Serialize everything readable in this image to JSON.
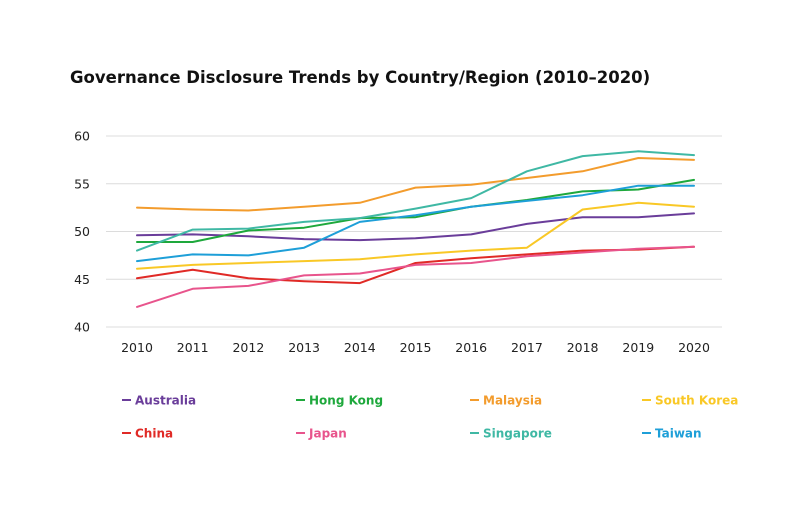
{
  "chart_data": {
    "type": "line",
    "title": "Governance Disclosure Trends by Country/Region (2010–2020)",
    "xlabel": "",
    "ylabel": "",
    "x": [
      "2010",
      "2011",
      "2012",
      "2013",
      "2014",
      "2015",
      "2016",
      "2017",
      "2018",
      "2019",
      "2020"
    ],
    "ylim": [
      40,
      60
    ],
    "yticks": [
      40,
      45,
      50,
      55,
      60
    ],
    "grid": true,
    "legend_position": "bottom",
    "series": [
      {
        "name": "Australia",
        "color": "#6a3d9a",
        "values": [
          49.6,
          49.7,
          49.5,
          49.2,
          49.1,
          49.3,
          49.7,
          50.8,
          51.5,
          51.5,
          51.9
        ]
      },
      {
        "name": "Hong Kong",
        "color": "#1ea83c",
        "values": [
          48.9,
          48.9,
          50.1,
          50.4,
          51.4,
          51.5,
          52.6,
          53.3,
          54.2,
          54.4,
          55.4
        ]
      },
      {
        "name": "Malaysia",
        "color": "#f39c2d",
        "values": [
          52.5,
          52.3,
          52.2,
          52.6,
          53.0,
          54.6,
          54.9,
          55.6,
          56.3,
          57.7,
          57.5
        ]
      },
      {
        "name": "South Korea",
        "color": "#f9c826",
        "values": [
          46.1,
          46.5,
          46.7,
          46.9,
          47.1,
          47.6,
          48.0,
          48.3,
          52.3,
          53.0,
          52.6
        ]
      },
      {
        "name": "China",
        "color": "#e02a26",
        "values": [
          45.1,
          46.0,
          45.1,
          44.8,
          44.6,
          46.7,
          47.2,
          47.6,
          48.0,
          48.1,
          48.4
        ]
      },
      {
        "name": "Japan",
        "color": "#e8548c",
        "values": [
          42.1,
          44.0,
          44.3,
          45.4,
          45.6,
          46.5,
          46.7,
          47.4,
          47.8,
          48.2,
          48.4
        ]
      },
      {
        "name": "Singapore",
        "color": "#3fb8a4",
        "values": [
          48.0,
          50.2,
          50.3,
          51.0,
          51.4,
          52.4,
          53.5,
          56.3,
          57.9,
          58.4,
          58.0
        ]
      },
      {
        "name": "Taiwan",
        "color": "#1e9fd8",
        "values": [
          46.9,
          47.6,
          47.5,
          48.3,
          51.0,
          51.7,
          52.6,
          53.2,
          53.8,
          54.8,
          54.8
        ]
      }
    ]
  }
}
